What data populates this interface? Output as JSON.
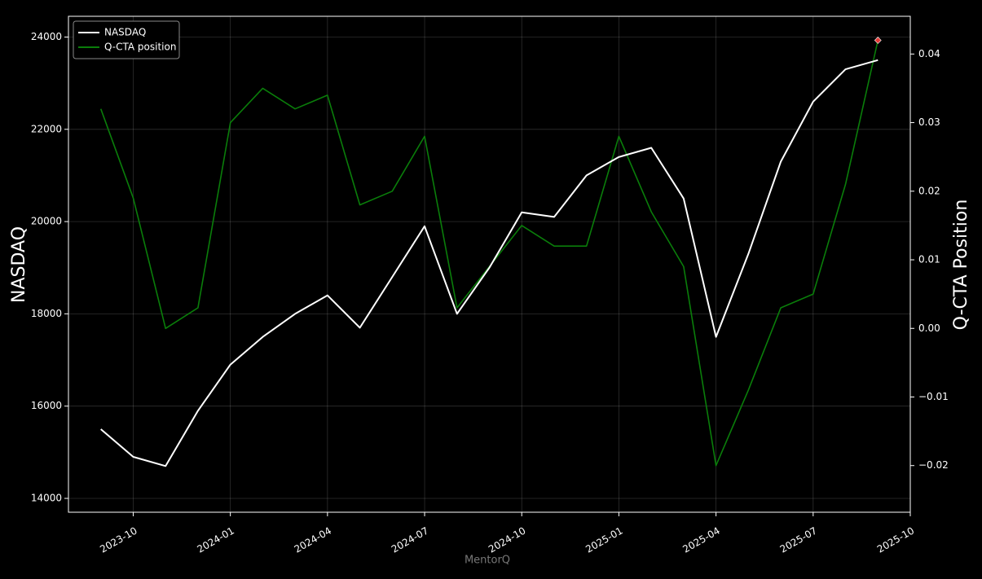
{
  "chart_data": {
    "type": "line",
    "ylabel": "NASDAQ",
    "y2label": "Q-CTA Position",
    "footer": "MentorQ",
    "x": [
      "2023-09",
      "2023-10",
      "2023-11",
      "2023-12",
      "2024-01",
      "2024-02",
      "2024-03",
      "2024-04",
      "2024-05",
      "2024-06",
      "2024-07",
      "2024-08",
      "2024-09",
      "2024-10",
      "2024-11",
      "2024-12",
      "2025-01",
      "2025-02",
      "2025-03",
      "2025-04",
      "2025-05",
      "2025-06",
      "2025-07",
      "2025-08",
      "2025-09"
    ],
    "series": [
      {
        "name": "NASDAQ",
        "color": "#ffffff",
        "values": [
          15500,
          14900,
          14700,
          15900,
          16900,
          17500,
          18000,
          18400,
          17700,
          18800,
          19900,
          18000,
          19000,
          20200,
          20100,
          21000,
          21400,
          21600,
          20500,
          17500,
          19300,
          21300,
          22600,
          23300,
          23500
        ]
      },
      {
        "name": "Q-CTA position",
        "color": "#0a7d0a",
        "axis": "y2",
        "last_marker_color": "#e53935",
        "values": [
          0.032,
          0.019,
          0.0,
          0.003,
          0.03,
          0.035,
          0.032,
          0.034,
          0.018,
          0.02,
          0.028,
          0.003,
          0.009,
          0.015,
          0.012,
          0.012,
          0.028,
          0.017,
          0.009,
          -0.02,
          -0.009,
          0.003,
          0.005,
          0.021,
          0.042
        ]
      }
    ],
    "xlim": [
      "2023-08",
      "2025-10"
    ],
    "xticks": [
      "2023-10",
      "2024-01",
      "2024-04",
      "2024-07",
      "2024-10",
      "2025-01",
      "2025-04",
      "2025-07",
      "2025-10"
    ],
    "ylim": [
      13700,
      24450
    ],
    "yticks": [
      14000,
      16000,
      18000,
      20000,
      22000,
      24000
    ],
    "y2lim": [
      -0.0268,
      0.0455
    ],
    "y2ticks": [
      {
        "value": -0.02,
        "label": "−0.02"
      },
      {
        "value": -0.01,
        "label": "−0.01"
      },
      {
        "value": 0,
        "label": "0.00"
      },
      0.01,
      0.02,
      0.03,
      0.04
    ],
    "grid": true,
    "legend": "upper left"
  }
}
